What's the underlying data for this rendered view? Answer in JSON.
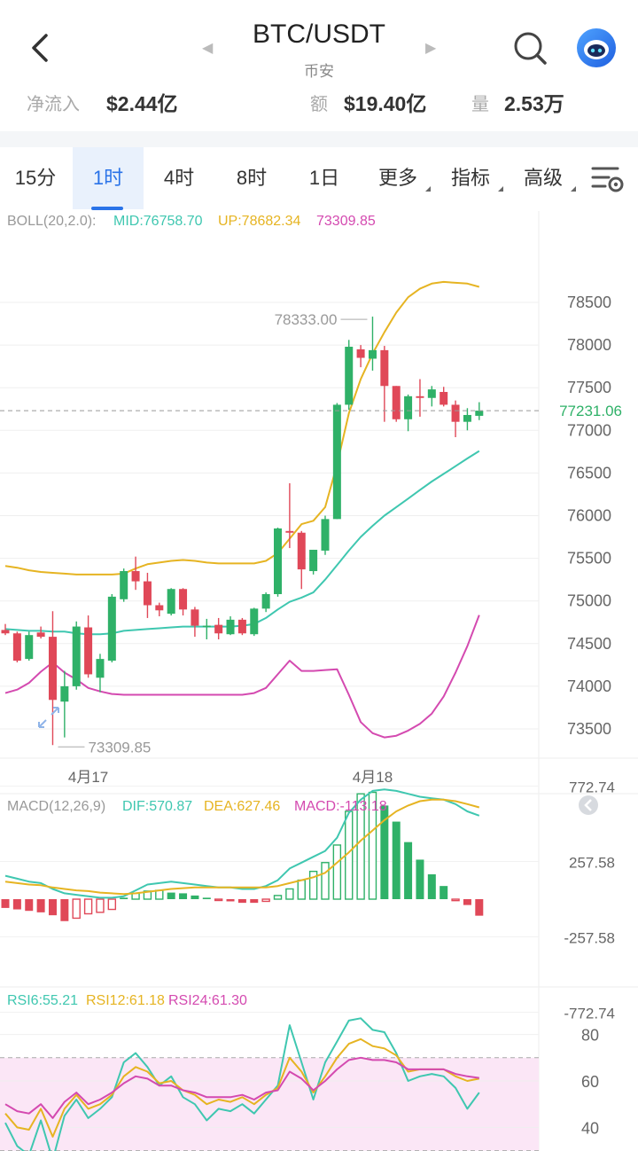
{
  "header": {
    "title": "BTC/USDT",
    "exchange": "币安",
    "net_inflow_label": "净流入",
    "net_inflow_value": "$2.44亿",
    "amount_label": "额",
    "amount_value": "$19.40亿",
    "volume_label": "量",
    "volume_value": "2.53万"
  },
  "tabs": [
    {
      "label": "15分",
      "active": false
    },
    {
      "label": "1时",
      "active": true
    },
    {
      "label": "4时",
      "active": false
    },
    {
      "label": "8时",
      "active": false
    },
    {
      "label": "1日",
      "active": false
    },
    {
      "label": "更多",
      "active": false,
      "dropdown": true
    },
    {
      "label": "指标",
      "active": false,
      "dropdown": true
    },
    {
      "label": "高级",
      "active": false,
      "dropdown": true
    }
  ],
  "icons": {
    "back": "back-arrow-icon",
    "search": "search-icon",
    "bot": "robot-avatar-icon",
    "settings": "chart-settings-icon",
    "collapse": "collapse-icon",
    "expand": "expand-arrows-icon"
  },
  "colors": {
    "up": "#2fb168",
    "down": "#e04858",
    "boll_mid": "#3fc7b0",
    "boll_up": "#e6b422",
    "boll_low": "#d44ab0",
    "accent": "#2a73e8",
    "rsi_band": "#fbe6f6"
  },
  "chart_data": [
    {
      "type": "candlestick",
      "indicator_label": "BOLL(20,2.0):",
      "mid_label": "MID:76758.70",
      "up_label": "UP:78682.34",
      "low_label": "73309.85",
      "y_ticks": [
        "78500",
        "78000",
        "77500",
        "77000",
        "76500",
        "76000",
        "75500",
        "75000",
        "74500",
        "74000",
        "73500"
      ],
      "ylim": [
        73150,
        79000
      ],
      "x_labels": [
        {
          "text": "4月17",
          "index": 7
        },
        {
          "text": "4月18",
          "index": 31
        }
      ],
      "current_price": "77231.06",
      "current_price_value": 77231.06,
      "high_label": "78333.00",
      "high_value": 78333,
      "high_index": 31,
      "low_value": 73309.85,
      "low_index": 4,
      "candles": [
        {
          "o": 74660,
          "h": 74730,
          "l": 74600,
          "c": 74620
        },
        {
          "o": 74620,
          "h": 74640,
          "l": 74280,
          "c": 74300
        },
        {
          "o": 74320,
          "h": 74640,
          "l": 74300,
          "c": 74600
        },
        {
          "o": 74630,
          "h": 74700,
          "l": 74560,
          "c": 74580
        },
        {
          "o": 74580,
          "h": 74880,
          "l": 73310,
          "c": 73840
        },
        {
          "o": 73820,
          "h": 74180,
          "l": 73400,
          "c": 74000
        },
        {
          "o": 74000,
          "h": 74760,
          "l": 73960,
          "c": 74700
        },
        {
          "o": 74690,
          "h": 74830,
          "l": 74100,
          "c": 74140
        },
        {
          "o": 74100,
          "h": 74380,
          "l": 73930,
          "c": 74320
        },
        {
          "o": 74300,
          "h": 75080,
          "l": 74280,
          "c": 75050
        },
        {
          "o": 75020,
          "h": 75380,
          "l": 74990,
          "c": 75350
        },
        {
          "o": 75350,
          "h": 75520,
          "l": 75130,
          "c": 75230
        },
        {
          "o": 75230,
          "h": 75330,
          "l": 74800,
          "c": 74950
        },
        {
          "o": 74950,
          "h": 74980,
          "l": 74820,
          "c": 74890
        },
        {
          "o": 74850,
          "h": 75150,
          "l": 74830,
          "c": 75140
        },
        {
          "o": 75140,
          "h": 75150,
          "l": 74830,
          "c": 74900
        },
        {
          "o": 74900,
          "h": 74930,
          "l": 74580,
          "c": 74710
        },
        {
          "o": 74700,
          "h": 74790,
          "l": 74550,
          "c": 74710
        },
        {
          "o": 74720,
          "h": 74800,
          "l": 74550,
          "c": 74620
        },
        {
          "o": 74610,
          "h": 74820,
          "l": 74600,
          "c": 74780
        },
        {
          "o": 74780,
          "h": 74800,
          "l": 74600,
          "c": 74620
        },
        {
          "o": 74610,
          "h": 74920,
          "l": 74590,
          "c": 74910
        },
        {
          "o": 74910,
          "h": 75100,
          "l": 74870,
          "c": 75080
        },
        {
          "o": 75080,
          "h": 75860,
          "l": 75050,
          "c": 75850
        },
        {
          "o": 75820,
          "h": 76380,
          "l": 75620,
          "c": 75800
        },
        {
          "o": 75800,
          "h": 75820,
          "l": 75140,
          "c": 75370
        },
        {
          "o": 75350,
          "h": 75600,
          "l": 75310,
          "c": 75600
        },
        {
          "o": 75590,
          "h": 76000,
          "l": 75540,
          "c": 75960
        },
        {
          "o": 75960,
          "h": 77320,
          "l": 75960,
          "c": 77300
        },
        {
          "o": 77300,
          "h": 78060,
          "l": 77240,
          "c": 77980
        },
        {
          "o": 77950,
          "h": 78000,
          "l": 77740,
          "c": 77850
        },
        {
          "o": 77840,
          "h": 78333,
          "l": 77700,
          "c": 77940
        },
        {
          "o": 77940,
          "h": 77990,
          "l": 77100,
          "c": 77520
        },
        {
          "o": 77520,
          "h": 77520,
          "l": 77100,
          "c": 77130
        },
        {
          "o": 77130,
          "h": 77420,
          "l": 76990,
          "c": 77400
        },
        {
          "o": 77400,
          "h": 77600,
          "l": 77160,
          "c": 77380
        },
        {
          "o": 77380,
          "h": 77520,
          "l": 77280,
          "c": 77480
        },
        {
          "o": 77450,
          "h": 77510,
          "l": 77280,
          "c": 77300
        },
        {
          "o": 77300,
          "h": 77350,
          "l": 76920,
          "c": 77100
        },
        {
          "o": 77100,
          "h": 77260,
          "l": 77000,
          "c": 77180
        },
        {
          "o": 77170,
          "h": 77330,
          "l": 77120,
          "c": 77231
        }
      ],
      "boll_up": [
        75410,
        75390,
        75360,
        75340,
        75330,
        75320,
        75310,
        75310,
        75310,
        75310,
        75320,
        75380,
        75430,
        75450,
        75470,
        75480,
        75470,
        75450,
        75440,
        75440,
        75440,
        75440,
        75470,
        75560,
        75730,
        75900,
        75940,
        76100,
        76600,
        77200,
        77600,
        77900,
        78150,
        78380,
        78560,
        78660,
        78720,
        78740,
        78730,
        78720,
        78682
      ],
      "boll_mid": [
        74670,
        74660,
        74650,
        74650,
        74640,
        74640,
        74620,
        74610,
        74610,
        74620,
        74650,
        74660,
        74670,
        74680,
        74690,
        74700,
        74700,
        74700,
        74700,
        74700,
        74710,
        74730,
        74800,
        74900,
        74990,
        75040,
        75100,
        75250,
        75420,
        75590,
        75750,
        75880,
        76000,
        76100,
        76200,
        76300,
        76400,
        76490,
        76580,
        76670,
        76758
      ],
      "boll_low": [
        73920,
        73960,
        74040,
        74170,
        74280,
        74160,
        74080,
        73980,
        73940,
        73910,
        73900,
        73900,
        73900,
        73900,
        73900,
        73900,
        73900,
        73900,
        73900,
        73900,
        73900,
        73920,
        73980,
        74140,
        74300,
        74180,
        74180,
        74190,
        74200,
        73900,
        73580,
        73450,
        73400,
        73420,
        73480,
        73560,
        73680,
        73880,
        74160,
        74470,
        74835
      ]
    },
    {
      "type": "bar",
      "indicator_label": "MACD(12,26,9)",
      "dif_label": "DIF:570.87",
      "dea_label": "DEA:627.46",
      "macd_label": "MACD:-113.18",
      "y_ticks": [
        "772.74",
        "257.58",
        "-257.58",
        "-772.74"
      ],
      "ylim": [
        -772.74,
        772.74
      ],
      "macd_hist": [
        -60,
        -70,
        -80,
        -90,
        -110,
        -150,
        -130,
        -100,
        -90,
        -70,
        10,
        40,
        55,
        60,
        45,
        40,
        25,
        10,
        -5,
        -15,
        -25,
        -25,
        -15,
        25,
        70,
        130,
        190,
        250,
        370,
        600,
        720,
        730,
        640,
        530,
        390,
        270,
        170,
        90,
        -10,
        -40,
        -113
      ],
      "dif": [
        160,
        140,
        120,
        110,
        70,
        40,
        30,
        20,
        10,
        10,
        20,
        60,
        100,
        110,
        120,
        110,
        100,
        90,
        80,
        80,
        70,
        70,
        90,
        130,
        210,
        250,
        290,
        330,
        420,
        590,
        680,
        740,
        750,
        740,
        720,
        700,
        690,
        680,
        650,
        600,
        571
      ],
      "dea": [
        120,
        110,
        100,
        95,
        80,
        70,
        60,
        55,
        45,
        40,
        35,
        40,
        50,
        60,
        70,
        75,
        80,
        80,
        80,
        80,
        80,
        80,
        80,
        90,
        110,
        130,
        150,
        180,
        250,
        320,
        400,
        470,
        540,
        600,
        640,
        670,
        680,
        680,
        670,
        650,
        627
      ]
    },
    {
      "type": "line",
      "indicator_label": "RSI6:55.21",
      "rsi12_label": "RSI12:61.18",
      "rsi24_label": "RSI24:61.30",
      "y_ticks": [
        "80",
        "60",
        "40"
      ],
      "ylim": [
        30,
        90
      ],
      "band": [
        30,
        70
      ],
      "rsi6": [
        42,
        32,
        28,
        43,
        26,
        45,
        52,
        44,
        48,
        53,
        68,
        72,
        66,
        58,
        62,
        53,
        50,
        43,
        48,
        47,
        50,
        46,
        52,
        58,
        84,
        68,
        52,
        68,
        77,
        86,
        87,
        82,
        81,
        72,
        60,
        62,
        63,
        62,
        57,
        48,
        55
      ],
      "rsi12": [
        46,
        40,
        39,
        48,
        36,
        48,
        54,
        48,
        50,
        54,
        62,
        66,
        64,
        59,
        60,
        56,
        54,
        50,
        52,
        51,
        53,
        50,
        54,
        57,
        70,
        64,
        55,
        62,
        70,
        76,
        78,
        75,
        74,
        71,
        64,
        65,
        65,
        65,
        62,
        60,
        61
      ],
      "rsi24": [
        50,
        47,
        46,
        50,
        44,
        51,
        55,
        50,
        52,
        55,
        59,
        62,
        61,
        58,
        58,
        56,
        55,
        53,
        53,
        53,
        54,
        52,
        55,
        56,
        64,
        61,
        56,
        60,
        65,
        69,
        70,
        69,
        69,
        68,
        65,
        65,
        65,
        65,
        63,
        62,
        61.3
      ]
    }
  ]
}
